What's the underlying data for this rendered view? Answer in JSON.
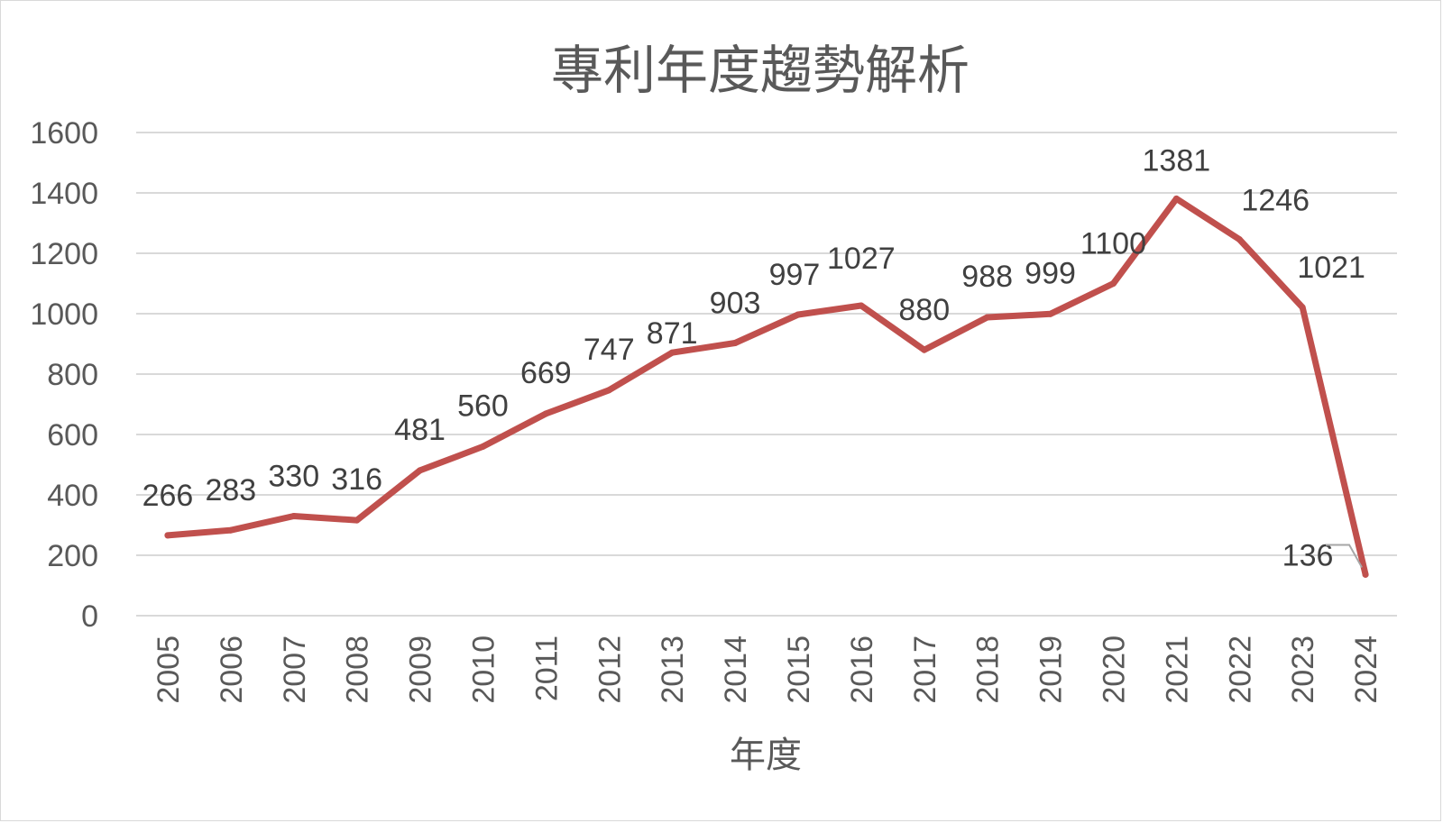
{
  "chart_data": {
    "type": "line",
    "title": "專利年度趨勢解析",
    "xlabel": "年度",
    "ylabel": "",
    "categories": [
      "2005",
      "2006",
      "2007",
      "2008",
      "2009",
      "2010",
      "2011",
      "2012",
      "2013",
      "2014",
      "2015",
      "2016",
      "2017",
      "2018",
      "2019",
      "2020",
      "2021",
      "2022",
      "2023",
      "2024"
    ],
    "series": [
      {
        "values": [
          266,
          283,
          330,
          316,
          481,
          560,
          669,
          747,
          871,
          903,
          997,
          1027,
          880,
          988,
          999,
          1100,
          1381,
          1246,
          1021,
          136
        ]
      }
    ],
    "ylim": [
      0,
      1600
    ],
    "yticks": [
      0,
      200,
      400,
      600,
      800,
      1000,
      1200,
      1400,
      1600
    ],
    "grid": true,
    "data_labels": true,
    "legend": "none",
    "line_color": "#c0504d"
  }
}
